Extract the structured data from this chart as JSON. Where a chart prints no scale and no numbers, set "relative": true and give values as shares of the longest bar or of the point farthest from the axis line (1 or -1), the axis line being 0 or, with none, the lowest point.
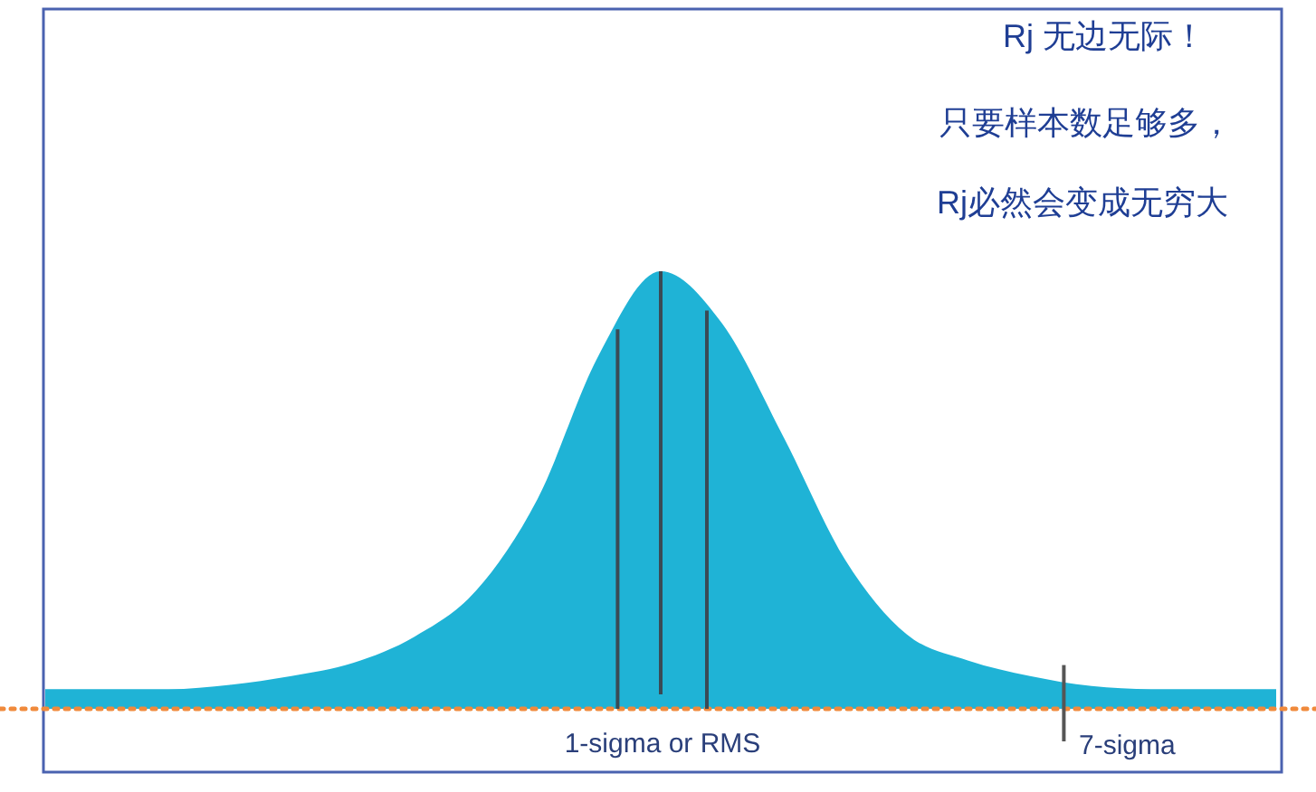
{
  "chart_data": {
    "type": "area",
    "relative": true,
    "categories": [
      null,
      null,
      null,
      null,
      null,
      null,
      null,
      null,
      null,
      null,
      null,
      null,
      null,
      null,
      null,
      null,
      null,
      null,
      null,
      null,
      null
    ],
    "series": [
      {
        "color": "#1fb3d6",
        "values": [
          0.045,
          0.045,
          0.045,
          0.055,
          0.075,
          0.105,
          0.165,
          0.27,
          0.48,
          0.81,
          1,
          0.88,
          0.62,
          0.34,
          0.17,
          0.11,
          0.075,
          0.052,
          0.045,
          0.045,
          0.045
        ]
      }
    ],
    "ref_lines": [
      {
        "axis": "y",
        "value": 0,
        "color": "#f08a3c",
        "line_style": "dotted"
      }
    ],
    "annotations": [
      "Rj 无边无际！",
      "只要样本数足够多，",
      "Rj必然会变成无穷大",
      "1-sigma or RMS",
      "7-sigma"
    ]
  }
}
